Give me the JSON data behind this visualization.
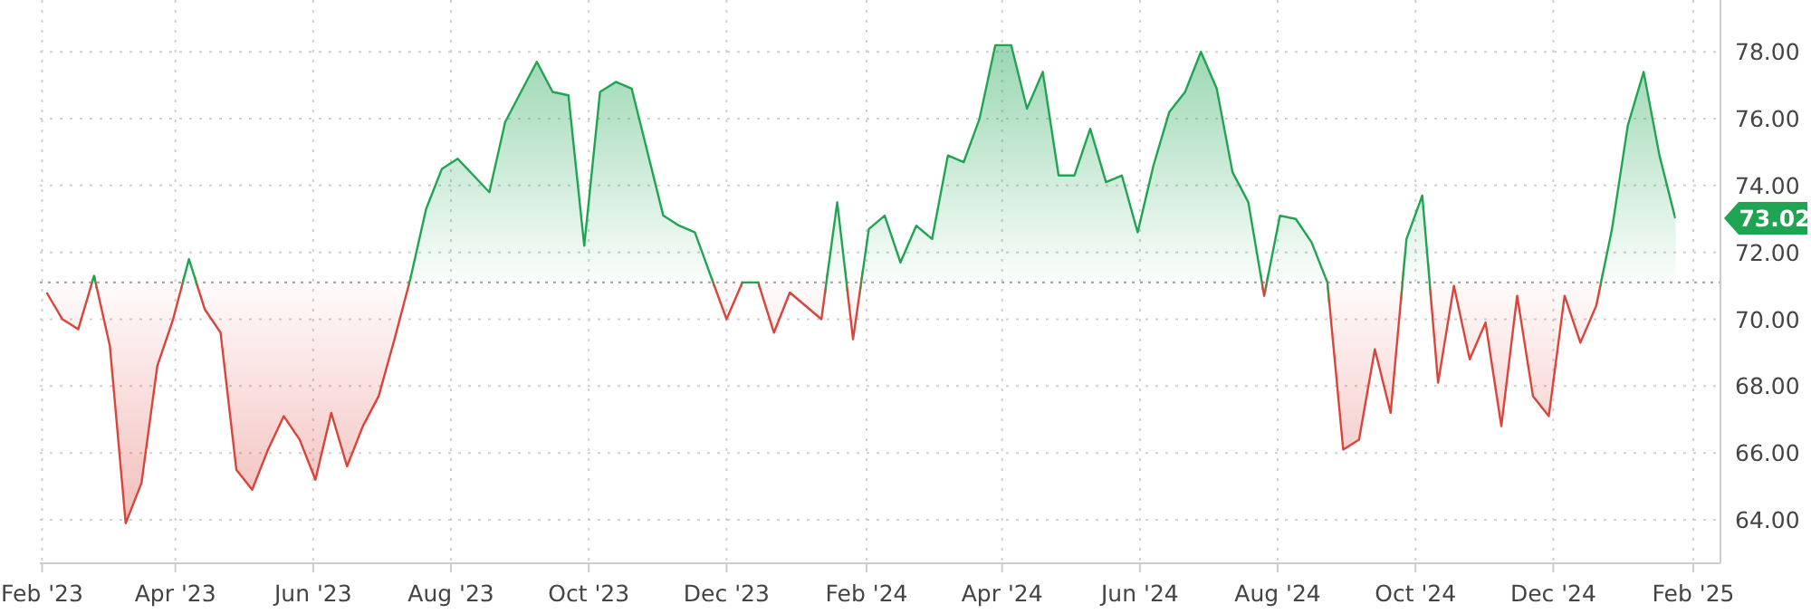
{
  "chart_data": {
    "type": "area",
    "x": [
      "2023-02-03",
      "2023-02-10",
      "2023-02-17",
      "2023-02-24",
      "2023-03-03",
      "2023-03-10",
      "2023-03-17",
      "2023-03-24",
      "2023-03-31",
      "2023-04-07",
      "2023-04-14",
      "2023-04-21",
      "2023-04-28",
      "2023-05-05",
      "2023-05-12",
      "2023-05-19",
      "2023-05-26",
      "2023-06-02",
      "2023-06-09",
      "2023-06-16",
      "2023-06-23",
      "2023-06-30",
      "2023-07-07",
      "2023-07-14",
      "2023-07-21",
      "2023-07-28",
      "2023-08-04",
      "2023-08-11",
      "2023-08-18",
      "2023-08-25",
      "2023-09-01",
      "2023-09-08",
      "2023-09-15",
      "2023-09-22",
      "2023-09-29",
      "2023-10-06",
      "2023-10-13",
      "2023-10-20",
      "2023-10-27",
      "2023-11-03",
      "2023-11-10",
      "2023-11-17",
      "2023-11-24",
      "2023-12-01",
      "2023-12-08",
      "2023-12-15",
      "2023-12-22",
      "2023-12-29",
      "2024-01-05",
      "2024-01-12",
      "2024-01-19",
      "2024-01-26",
      "2024-02-02",
      "2024-02-09",
      "2024-02-16",
      "2024-02-23",
      "2024-03-01",
      "2024-03-08",
      "2024-03-15",
      "2024-03-22",
      "2024-03-29",
      "2024-04-05",
      "2024-04-12",
      "2024-04-19",
      "2024-04-26",
      "2024-05-03",
      "2024-05-10",
      "2024-05-17",
      "2024-05-24",
      "2024-05-31",
      "2024-06-07",
      "2024-06-14",
      "2024-06-21",
      "2024-06-28",
      "2024-07-05",
      "2024-07-12",
      "2024-07-19",
      "2024-07-26",
      "2024-08-02",
      "2024-08-09",
      "2024-08-16",
      "2024-08-23",
      "2024-08-30",
      "2024-09-06",
      "2024-09-13",
      "2024-09-20",
      "2024-09-27",
      "2024-10-04",
      "2024-10-11",
      "2024-10-18",
      "2024-10-25",
      "2024-11-01",
      "2024-11-08",
      "2024-11-15",
      "2024-11-22",
      "2024-11-29",
      "2024-12-06",
      "2024-12-13",
      "2024-12-20",
      "2024-12-27",
      "2025-01-03",
      "2025-01-10",
      "2025-01-17",
      "2025-01-24"
    ],
    "series": [
      {
        "color": "#1fa552",
        "colors": [
          "#d9443b",
          "#d9443b",
          "#d9443b",
          "#1fa552",
          "#d9443b",
          "#d9443b",
          "#d9443b",
          "#d9443b",
          "#d9443b",
          "#1fa552",
          "#d9443b",
          "#d9443b",
          "#d9443b",
          "#d9443b",
          "#d9443b",
          "#d9443b",
          "#d9443b",
          "#d9443b",
          "#d9443b",
          "#d9443b",
          "#d9443b",
          "#d9443b",
          "#d9443b",
          "#1fa552",
          "#1fa552",
          "#1fa552",
          "#1fa552",
          "#1fa552",
          "#1fa552",
          "#1fa552",
          "#1fa552",
          "#1fa552",
          "#1fa552",
          "#1fa552",
          "#1fa552",
          "#1fa552",
          "#1fa552",
          "#1fa552",
          "#1fa552",
          "#1fa552",
          "#1fa552",
          "#1fa552",
          "#1fa552",
          "#d9443b",
          "#1fa552",
          "#1fa552",
          "#d9443b",
          "#d9443b",
          "#d9443b",
          "#d9443b",
          "#1fa552",
          "#d9443b",
          "#1fa552",
          "#1fa552",
          "#1fa552",
          "#1fa552",
          "#1fa552",
          "#1fa552",
          "#1fa552",
          "#1fa552",
          "#1fa552",
          "#1fa552",
          "#1fa552",
          "#1fa552",
          "#1fa552",
          "#1fa552",
          "#1fa552",
          "#1fa552",
          "#1fa552",
          "#1fa552",
          "#1fa552",
          "#1fa552",
          "#1fa552",
          "#1fa552",
          "#1fa552",
          "#1fa552",
          "#1fa552",
          "#d9443b",
          "#1fa552",
          "#1fa552",
          "#1fa552",
          "#1fa552",
          "#d9443b",
          "#d9443b",
          "#d9443b",
          "#d9443b",
          "#1fa552",
          "#1fa552",
          "#d9443b",
          "#d9443b",
          "#d9443b",
          "#d9443b",
          "#d9443b",
          "#d9443b",
          "#d9443b",
          "#d9443b",
          "#d9443b",
          "#d9443b",
          "#d9443b",
          "#1fa552",
          "#1fa552",
          "#1fa552",
          "#1fa552",
          "#1fa552"
        ],
        "values": [
          70.8,
          70.0,
          69.7,
          71.3,
          69.2,
          63.9,
          65.1,
          68.6,
          70.0,
          71.8,
          70.3,
          69.6,
          65.5,
          64.9,
          66.1,
          67.1,
          66.4,
          65.2,
          67.2,
          65.6,
          66.8,
          67.7,
          69.4,
          71.2,
          73.3,
          74.5,
          74.8,
          74.3,
          73.8,
          75.9,
          76.8,
          77.7,
          76.8,
          76.7,
          72.2,
          76.8,
          77.1,
          76.9,
          75.0,
          73.1,
          72.8,
          72.6,
          71.3,
          70.0,
          71.1,
          71.1,
          69.6,
          70.8,
          70.4,
          70.0,
          73.5,
          69.4,
          72.7,
          73.1,
          71.7,
          72.8,
          72.4,
          74.9,
          74.7,
          76.0,
          78.2,
          78.2,
          76.3,
          77.4,
          74.3,
          74.3,
          75.7,
          74.1,
          74.3,
          72.6,
          74.6,
          76.2,
          76.8,
          78.0,
          76.9,
          74.4,
          73.5,
          70.7,
          73.1,
          73.0,
          72.3,
          71.1,
          66.1,
          66.4,
          69.1,
          67.2,
          72.4,
          73.7,
          68.1,
          71.0,
          68.8,
          69.9,
          66.8,
          70.7,
          67.7,
          67.1,
          70.7,
          69.3,
          70.4,
          72.7,
          75.8,
          77.4,
          74.9,
          73.02
        ]
      }
    ],
    "xlim": [
      "2023-01-31",
      "2025-02-13"
    ],
    "xticks": [
      {
        "value": "2023-02-01",
        "label": "Feb '23"
      },
      {
        "value": "2023-04-01",
        "label": "Apr '23"
      },
      {
        "value": "2023-06-01",
        "label": "Jun '23"
      },
      {
        "value": "2023-08-01",
        "label": "Aug '23"
      },
      {
        "value": "2023-10-01",
        "label": "Oct '23"
      },
      {
        "value": "2023-12-01",
        "label": "Dec '23"
      },
      {
        "value": "2024-02-01",
        "label": "Feb '24"
      },
      {
        "value": "2024-04-01",
        "label": "Apr '24"
      },
      {
        "value": "2024-06-01",
        "label": "Jun '24"
      },
      {
        "value": "2024-08-01",
        "label": "Aug '24"
      },
      {
        "value": "2024-10-01",
        "label": "Oct '24"
      },
      {
        "value": "2024-12-01",
        "label": "Dec '24"
      },
      {
        "value": "2025-02-01",
        "label": "Feb '25"
      }
    ],
    "ylim": [
      62.7,
      79.55
    ],
    "yticks": [
      {
        "value": 64,
        "label": "64.00"
      },
      {
        "value": 66,
        "label": "66.00"
      },
      {
        "value": 68,
        "label": "68.00"
      },
      {
        "value": 70,
        "label": "70.00"
      },
      {
        "value": 72,
        "label": "72.00"
      },
      {
        "value": 74,
        "label": "74.00"
      },
      {
        "value": 76,
        "label": "76.00"
      },
      {
        "value": 78,
        "label": "78.00"
      }
    ],
    "grid": true,
    "ref_lines": [
      {
        "axis": "y",
        "value": 71.1,
        "color": "#aaaaaa",
        "line_style": "dotted"
      }
    ],
    "annotations": [
      {
        "text": "73.02",
        "x": "2025-01-24",
        "y": 73.02
      }
    ]
  }
}
